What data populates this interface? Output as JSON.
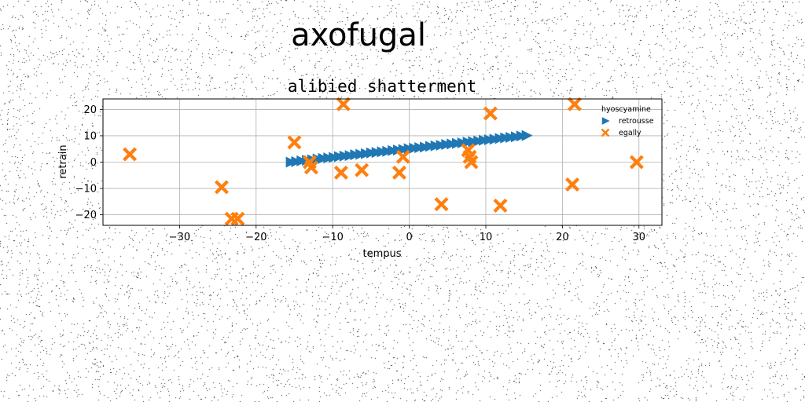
{
  "suptitle": "axofugal",
  "chart_data": {
    "type": "scatter",
    "title": "alibied shatterment",
    "xlabel": "tempus",
    "ylabel": "retrain",
    "xlim": [
      -40,
      33
    ],
    "ylim": [
      -24,
      24
    ],
    "xticks": [
      -30,
      -20,
      -10,
      0,
      10,
      20,
      30
    ],
    "yticks": [
      -20,
      -10,
      0,
      10,
      20
    ],
    "xtick_labels": [
      "−30",
      "−20",
      "−10",
      "0",
      "10",
      "20",
      "30"
    ],
    "ytick_labels": [
      "−20",
      "−10",
      "0",
      "10",
      "20"
    ],
    "grid": true,
    "legend": {
      "title": "hyoscyamine",
      "position": "top-right",
      "entries": [
        "retrousse",
        "egally"
      ]
    },
    "series": [
      {
        "name": "retrousse",
        "marker": "triangle-right",
        "color": "#1f77b4",
        "x": [
          -15.5,
          -14.8,
          -14.1,
          -13.4,
          -12.7,
          -12.0,
          -11.3,
          -10.6,
          -9.9,
          -9.2,
          -8.5,
          -7.8,
          -7.1,
          -6.4,
          -5.7,
          -5.0,
          -4.3,
          -3.6,
          -2.9,
          -2.2,
          -1.5,
          -0.8,
          -0.1,
          0.6,
          1.3,
          2.0,
          2.7,
          3.4,
          4.1,
          4.8,
          5.5,
          6.2,
          6.9,
          7.6,
          8.3,
          9.0,
          9.7,
          10.4,
          11.1,
          11.8,
          12.5,
          13.2,
          13.9,
          14.6,
          15.3
        ],
        "y": [
          0.0,
          0.2,
          0.5,
          0.7,
          0.9,
          1.2,
          1.4,
          1.6,
          1.8,
          2.1,
          2.3,
          2.5,
          2.8,
          3.0,
          3.2,
          3.5,
          3.7,
          3.9,
          4.1,
          4.4,
          4.6,
          4.8,
          5.1,
          5.3,
          5.5,
          5.7,
          6.0,
          6.2,
          6.4,
          6.7,
          6.9,
          7.1,
          7.3,
          7.6,
          7.8,
          8.0,
          8.3,
          8.5,
          8.7,
          9.0,
          9.2,
          9.4,
          9.6,
          9.9,
          10.1
        ]
      },
      {
        "name": "egally",
        "marker": "x-filled",
        "color": "#ff7f0e",
        "x": [
          -36.5,
          -24.5,
          -23.2,
          -22.4,
          -15.0,
          -13.0,
          -12.8,
          -8.9,
          -8.6,
          -6.2,
          -1.3,
          -0.8,
          4.2,
          7.7,
          7.9,
          8.1,
          10.6,
          11.9,
          21.3,
          21.6,
          29.7
        ],
        "y": [
          3.0,
          -9.5,
          -21.5,
          -21.5,
          7.5,
          0.0,
          -2.0,
          -4.0,
          22.0,
          -3.0,
          -4.0,
          2.0,
          -16.0,
          4.5,
          2.0,
          0.0,
          18.5,
          -16.5,
          -8.5,
          22.0,
          0.0
        ]
      }
    ]
  }
}
